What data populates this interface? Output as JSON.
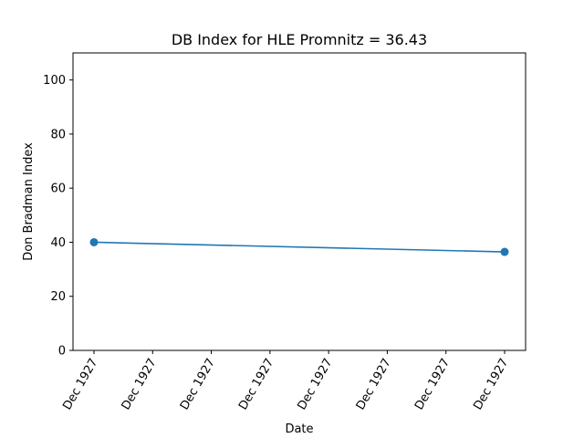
{
  "chart_data": {
    "type": "line",
    "title": "DB Index for HLE Promnitz = 36.43",
    "xlabel": "Date",
    "ylabel": "Don Bradman Index",
    "x_tick_labels": [
      "Dec 1927",
      "Dec 1927",
      "Dec 1927",
      "Dec 1927",
      "Dec 1927",
      "Dec 1927",
      "Dec 1927",
      "Dec 1927"
    ],
    "y_ticks": [
      0,
      20,
      40,
      60,
      80,
      100
    ],
    "ylim": [
      0,
      110
    ],
    "grid": false,
    "legend": "none",
    "series": [
      {
        "color": "#1f77b4",
        "points": [
          {
            "x": "Dec 1927",
            "y": 40.0
          },
          {
            "x": "Dec 1927",
            "y": 36.43
          }
        ]
      }
    ]
  }
}
